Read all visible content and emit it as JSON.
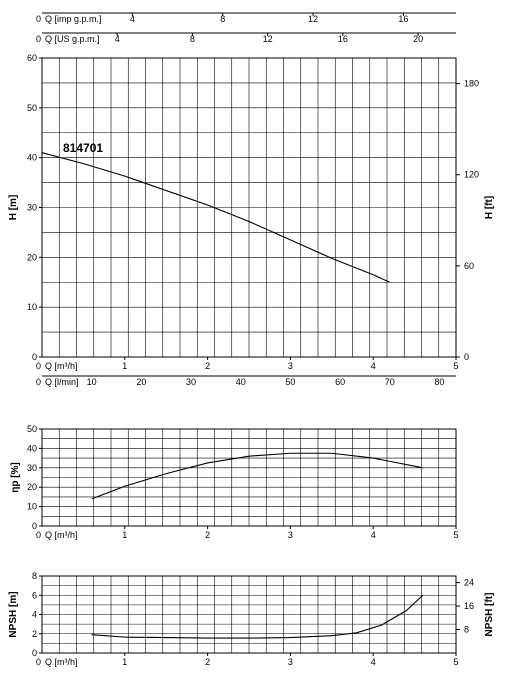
{
  "model_label": "814701",
  "top_scales": [
    {
      "label": "Q [imp g.p.m.]",
      "zero": "0",
      "ticks": [
        "4",
        "8",
        "12",
        "16"
      ],
      "tick_values": [
        4,
        8,
        12,
        16
      ],
      "factor": 0.2728
    },
    {
      "label": "Q [US g.p.m.]",
      "zero": "0",
      "ticks": [
        "4",
        "8",
        "12",
        "16",
        "20"
      ],
      "tick_values": [
        4,
        8,
        12,
        16,
        20
      ],
      "factor": 0.2271
    }
  ],
  "flow_axis_m3h": {
    "label": "Q [m³/h]",
    "ticks": [
      "0",
      "1",
      "2",
      "3",
      "4",
      "5"
    ],
    "range": [
      0,
      5
    ]
  },
  "flow_axis_lmin": {
    "label": "Q [l/min]",
    "ticks": [
      "0",
      "10",
      "20",
      "30",
      "40",
      "50",
      "60",
      "70",
      "80"
    ],
    "tick_values": [
      0,
      10,
      20,
      30,
      40,
      50,
      60,
      70,
      80
    ]
  },
  "chart_data": [
    {
      "type": "line",
      "name": "head",
      "ylabel": "H [m]",
      "y2label": "H [ft]",
      "xlim": [
        0,
        5
      ],
      "ylim": [
        0,
        60
      ],
      "yticks": [
        "0",
        "10",
        "20",
        "30",
        "40",
        "50",
        "60"
      ],
      "y2ticks": [
        "0",
        "60",
        "120",
        "180"
      ],
      "y2_tick_values": [
        0,
        60,
        120,
        180
      ],
      "grid": true,
      "series": [
        {
          "x": [
            0,
            0.5,
            1.0,
            1.5,
            2.0,
            2.5,
            3.0,
            3.5,
            4.0,
            4.2
          ],
          "y": [
            41,
            38.8,
            36.3,
            33.4,
            30.5,
            27.2,
            23.5,
            19.8,
            16.5,
            15
          ]
        }
      ]
    },
    {
      "type": "line",
      "name": "efficiency",
      "ylabel": "ηp [%]",
      "xlim": [
        0,
        5
      ],
      "ylim": [
        0,
        50
      ],
      "yticks": [
        "0",
        "10",
        "20",
        "30",
        "40",
        "50"
      ],
      "grid": true,
      "series": [
        {
          "x": [
            0.6,
            1.0,
            1.5,
            2.0,
            2.5,
            3.0,
            3.5,
            4.0,
            4.6
          ],
          "y": [
            14,
            20.5,
            27,
            32.5,
            36,
            37.5,
            37.5,
            35,
            30
          ]
        }
      ]
    },
    {
      "type": "line",
      "name": "npsh",
      "ylabel": "NPSH [m]",
      "y2label": "NPSH [ft]",
      "xlim": [
        0,
        5
      ],
      "ylim": [
        0,
        8
      ],
      "yticks": [
        "0",
        "2",
        "4",
        "6",
        "8"
      ],
      "y2ticks": [
        "8",
        "16",
        "24"
      ],
      "y2_tick_values": [
        8,
        16,
        24
      ],
      "grid": true,
      "series": [
        {
          "x": [
            0.6,
            1.0,
            1.5,
            2.0,
            2.5,
            3.0,
            3.5,
            3.8,
            4.1,
            4.4,
            4.6
          ],
          "y": [
            1.9,
            1.65,
            1.6,
            1.55,
            1.55,
            1.6,
            1.8,
            2.1,
            2.9,
            4.4,
            6
          ]
        }
      ]
    }
  ]
}
